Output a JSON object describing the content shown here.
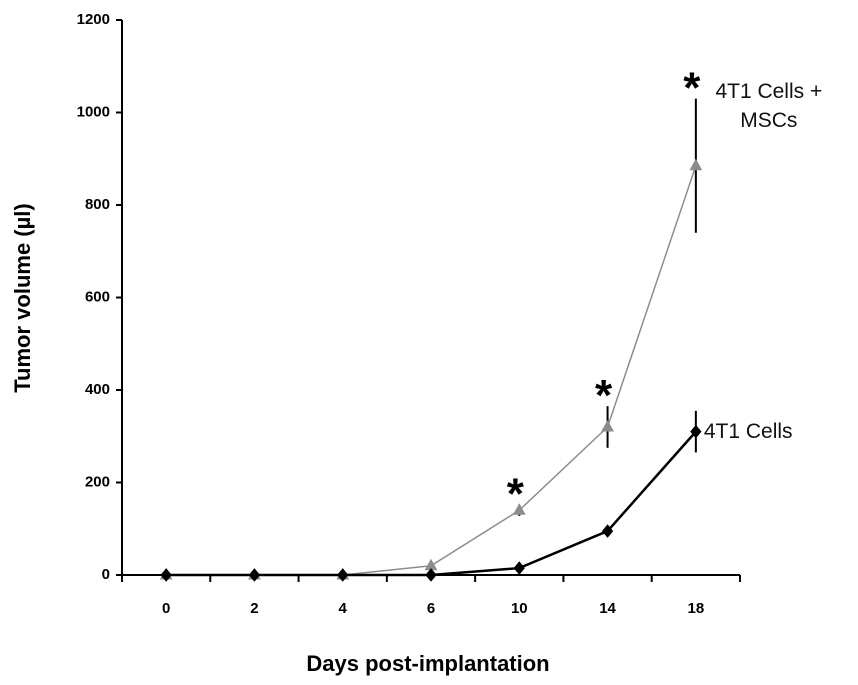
{
  "chart_data": {
    "type": "line",
    "x_label": "Days post-implantation",
    "y_label": "Tumor volume (µl)",
    "categories": [
      "0",
      "2",
      "4",
      "6",
      "10",
      "14",
      "18"
    ],
    "series": [
      {
        "name": "4T1 Cells + MSCs",
        "color": "#8c8c8c",
        "marker": "triangle",
        "values": [
          0,
          0,
          0,
          20,
          140,
          320,
          885
        ],
        "errors": [
          null,
          null,
          null,
          null,
          12,
          45,
          145
        ]
      },
      {
        "name": "4T1 Cells",
        "color": "#000000",
        "marker": "diamond",
        "values": [
          0,
          0,
          0,
          0,
          15,
          95,
          310
        ],
        "errors": [
          null,
          null,
          null,
          null,
          null,
          null,
          45
        ]
      }
    ],
    "annotations": [
      {
        "text": "*",
        "category": "10"
      },
      {
        "text": "*",
        "category": "14"
      },
      {
        "text": "*",
        "category": "18"
      }
    ],
    "ylim": [
      0,
      1200
    ],
    "yticks": [
      0,
      200,
      400,
      600,
      800,
      1000,
      1200
    ]
  }
}
